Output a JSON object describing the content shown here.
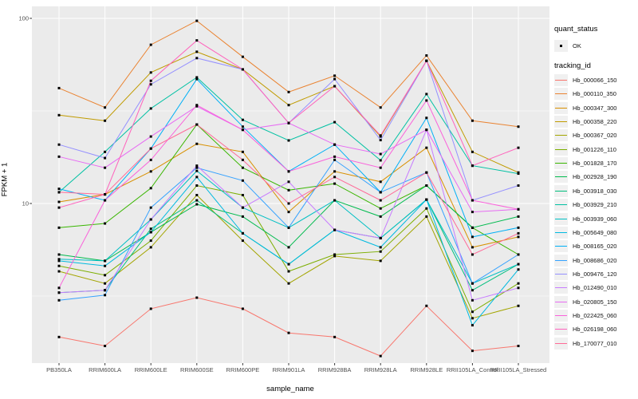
{
  "chart_data": {
    "type": "line",
    "title": "",
    "xlabel": "sample_name",
    "ylabel": "FPKM + 1",
    "y_scale": "log10",
    "ylim": [
      1.35,
      116
    ],
    "y_tick_labels": [
      "100",
      "10"
    ],
    "y_tick_values": [
      100,
      10
    ],
    "y_minor_values": [
      31.62,
      3.162
    ],
    "grid": true,
    "panel_bg": "#EBEBEB",
    "grid_color": "#FFFFFF",
    "point_color": "#000000",
    "tick_color": "#333333",
    "legend_position": "right",
    "x_categories": [
      "PB350LA",
      "RRIM600LA",
      "RRIM600LE",
      "RRIM600SE",
      "RRIM600PE",
      "RRIM901LA",
      "RRIM928BA",
      "RRIM928LA",
      "RRIM928LE",
      "RRII105LA_Control",
      "RRII105LA_Stressed"
    ],
    "series": [
      {
        "name": "Hb_000066_150",
        "color": "#F8766D",
        "values": [
          1.9,
          1.7,
          2.7,
          3.1,
          2.7,
          2.0,
          1.9,
          1.5,
          2.8,
          1.6,
          1.7
        ]
      },
      {
        "name": "Hb_000110_350",
        "color": "#EA8331",
        "values": [
          42,
          33,
          72,
          97,
          62,
          40,
          49,
          33,
          63,
          28,
          26
        ]
      },
      {
        "name": "Hb_000347_300",
        "color": "#D89000",
        "values": [
          10.2,
          11.2,
          14.9,
          21,
          19,
          9.0,
          14.9,
          13.1,
          20,
          5.8,
          6.6
        ]
      },
      {
        "name": "Hb_000358_220",
        "color": "#C09B00",
        "values": [
          30,
          28,
          51,
          66,
          53,
          34,
          43,
          23,
          59,
          19,
          14.7
        ]
      },
      {
        "name": "Hb_000367_020",
        "color": "#A3A500",
        "values": [
          4.3,
          3.7,
          5.8,
          11.1,
          6.3,
          3.7,
          5.2,
          4.9,
          8.5,
          2.4,
          2.8
        ]
      },
      {
        "name": "Hb_001226_110",
        "color": "#7CAE00",
        "values": [
          4.6,
          4.1,
          6.3,
          12.5,
          11.1,
          4.3,
          5.3,
          5.5,
          9.4,
          2.6,
          3.7
        ]
      },
      {
        "name": "Hb_001828_170",
        "color": "#39B600",
        "values": [
          7.4,
          7.8,
          12.1,
          26.7,
          15.6,
          11.8,
          12.8,
          9.4,
          12.5,
          7.4,
          5.3
        ]
      },
      {
        "name": "Hb_002928_190",
        "color": "#00BB4E",
        "values": [
          5.3,
          4.9,
          7.0,
          9.9,
          8.5,
          5.8,
          10.4,
          8.5,
          12.5,
          7.4,
          8.5
        ]
      },
      {
        "name": "Hb_003918_030",
        "color": "#00BF7D",
        "values": [
          3.3,
          3.4,
          7.3,
          10.4,
          6.9,
          4.7,
          7.2,
          6.5,
          10.5,
          3.4,
          4.7
        ]
      },
      {
        "name": "Hb_003929_210",
        "color": "#00C1A3",
        "values": [
          11.5,
          19,
          32.6,
          48,
          28.3,
          21.9,
          27.5,
          17.1,
          39,
          16,
          14.5
        ]
      },
      {
        "name": "Hb_003939_060",
        "color": "#00BFC4",
        "values": [
          5.0,
          4.9,
          8.2,
          15,
          9.5,
          7.4,
          10.4,
          6.5,
          10.5,
          3.7,
          4.7
        ]
      },
      {
        "name": "Hb_005649_080",
        "color": "#00BAE0",
        "values": [
          4.9,
          4.6,
          7.0,
          13.9,
          6.9,
          4.7,
          7.2,
          5.8,
          10.5,
          2.2,
          4.4
        ]
      },
      {
        "name": "Hb_008165_020",
        "color": "#00B0F6",
        "values": [
          12,
          10.4,
          19.8,
          47,
          26,
          14.9,
          20.8,
          11.5,
          29,
          6.6,
          7.4
        ]
      },
      {
        "name": "Hb_008686_020",
        "color": "#35A2FF",
        "values": [
          3.0,
          3.2,
          9.5,
          15.6,
          13.3,
          7.4,
          17.2,
          11.5,
          14.7,
          3.7,
          5.3
        ]
      },
      {
        "name": "Hb_009476_120",
        "color": "#9590FF",
        "values": [
          20.8,
          17.6,
          44,
          61,
          53,
          27.2,
          47,
          22,
          59,
          10.4,
          12.5
        ]
      },
      {
        "name": "Hb_012490_010",
        "color": "#C77CFF",
        "values": [
          3.3,
          3.4,
          8.2,
          16,
          9.5,
          13.1,
          7.2,
          6.5,
          25,
          3.0,
          3.5
        ]
      },
      {
        "name": "Hb_020805_150",
        "color": "#E76BF3",
        "values": [
          17.9,
          15.6,
          23,
          33.5,
          25,
          27.2,
          20.8,
          18.5,
          25,
          9.0,
          9.3
        ]
      },
      {
        "name": "Hb_022425_060",
        "color": "#FA62DB",
        "values": [
          3.5,
          10.4,
          17.2,
          34,
          25,
          14.9,
          17.9,
          15.6,
          36,
          10.4,
          9.3
        ]
      },
      {
        "name": "Hb_026198_060",
        "color": "#FF62BC",
        "values": [
          9.5,
          11.2,
          46,
          76,
          53,
          27.2,
          43,
          23.3,
          59,
          16,
          20
        ]
      },
      {
        "name": "Hb_170077_010",
        "color": "#FF6A98",
        "values": [
          11.5,
          11.2,
          19.8,
          26.7,
          17.2,
          10.0,
          13.9,
          10.4,
          14.7,
          5.3,
          6.9
        ]
      }
    ]
  },
  "legend": {
    "quant_status_title": "quant_status",
    "quant_status_items": [
      {
        "label": "OK",
        "symbol": "black-point"
      }
    ],
    "tracking_id_title": "tracking_id"
  }
}
